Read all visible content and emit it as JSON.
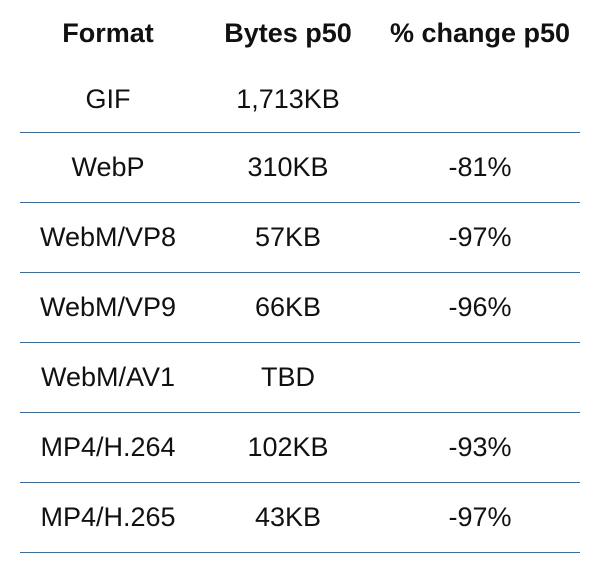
{
  "table": {
    "headers": [
      "Format",
      "Bytes p50",
      "% change p50"
    ],
    "rows": [
      [
        "GIF",
        "1,713KB",
        ""
      ],
      [
        "WebP",
        "310KB",
        "-81%"
      ],
      [
        "WebM/VP8",
        "57KB",
        "-97%"
      ],
      [
        "WebM/VP9",
        "66KB",
        "-96%"
      ],
      [
        "WebM/AV1",
        "TBD",
        ""
      ],
      [
        "MP4/H.264",
        "102KB",
        "-93%"
      ],
      [
        "MP4/H.265",
        "43KB",
        "-97%"
      ]
    ]
  },
  "colors": {
    "row_divider": "#3d6d96",
    "text": "#111111",
    "background": "#ffffff"
  }
}
